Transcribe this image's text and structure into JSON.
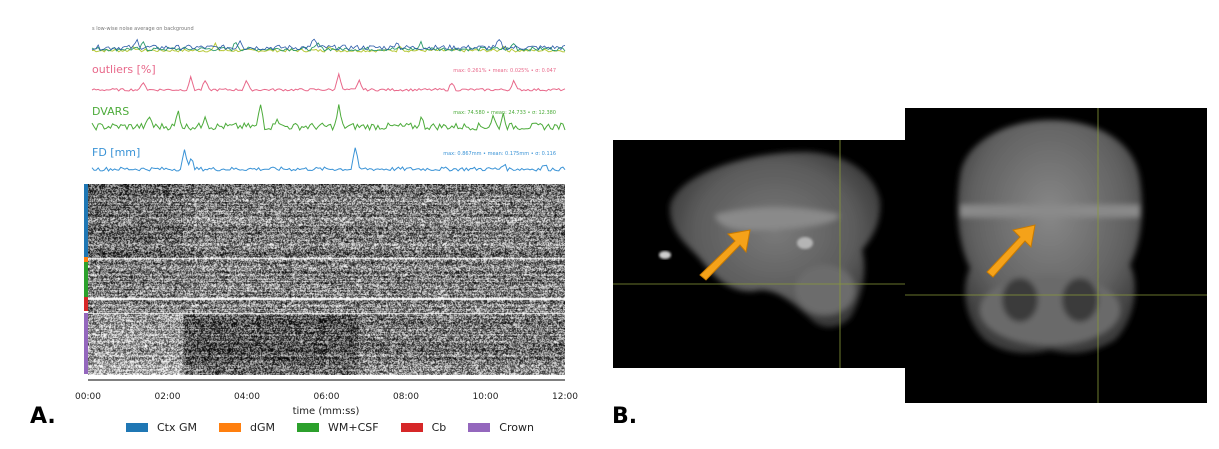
{
  "panel_labels": {
    "a": "A.",
    "b": "B."
  },
  "carpetplot": {
    "noise_label": "s low-wise noise average on background",
    "tracks": [
      {
        "key": "outliers",
        "name": "outliers [%]",
        "stats": "max: 0.261% • mean: 0.025% • σ: 0.047",
        "color": "#e8688a"
      },
      {
        "key": "dvars",
        "name": "DVARS",
        "stats": "max: 74.580 • mean: 24.733 • σ: 12.380",
        "color": "#4cab3a"
      },
      {
        "key": "fd",
        "name": "FD [mm]",
        "stats": "max: 0.867mm • mean: 0.175mm • σ: 0.116",
        "color": "#3a93d6"
      }
    ],
    "xaxis": {
      "label": "time (mm:ss)",
      "ticks": [
        "00:00",
        "02:00",
        "04:00",
        "06:00",
        "08:00",
        "10:00",
        "12:00"
      ]
    },
    "segments": [
      {
        "name": "Ctx GM",
        "color": "#1f77b4"
      },
      {
        "name": "dGM",
        "color": "#ff7f0e"
      },
      {
        "name": "WM+CSF",
        "color": "#2ca02c"
      },
      {
        "name": "Cb",
        "color": "#d62728"
      },
      {
        "name": "Crown",
        "color": "#9467bd"
      }
    ]
  },
  "mri": {
    "crosshair_color": "#8a9a3a",
    "arrow_color": "#f5a219"
  }
}
